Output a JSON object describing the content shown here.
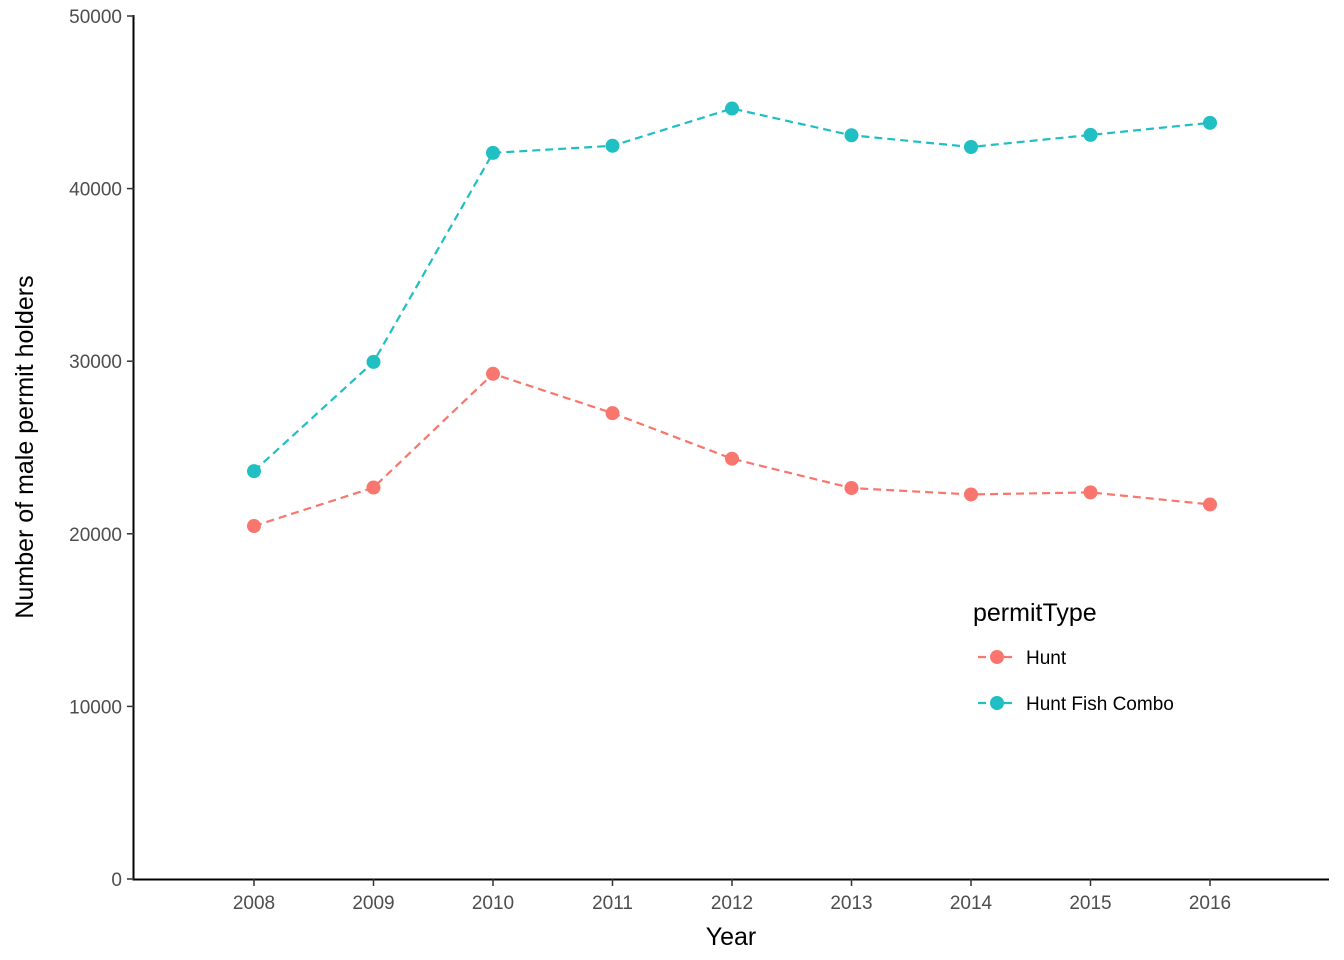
{
  "chart_data": {
    "type": "line",
    "title": "",
    "xlabel": "Year",
    "ylabel": "Number of male permit holders",
    "x": [
      "2008",
      "2009",
      "2010",
      "2011",
      "2012",
      "2013",
      "2014",
      "2015",
      "2016"
    ],
    "ylim": [
      0,
      50000
    ],
    "yticks": [
      "0",
      "10000",
      "20000",
      "30000",
      "40000",
      "50000"
    ],
    "grid": false,
    "line_style": "dashed",
    "markers": "circle",
    "legend": {
      "title": "permitType",
      "placement": "inside-right"
    },
    "series": [
      {
        "name": "Hunt",
        "color": "#F8766D",
        "values": [
          20450,
          22680,
          29270,
          26990,
          24350,
          22650,
          22280,
          22400,
          21700
        ]
      },
      {
        "name": "Hunt Fish Combo",
        "color": "#1FBFC3",
        "values": [
          23630,
          29960,
          42070,
          42480,
          44640,
          43090,
          42410,
          43110,
          43810
        ]
      }
    ]
  }
}
